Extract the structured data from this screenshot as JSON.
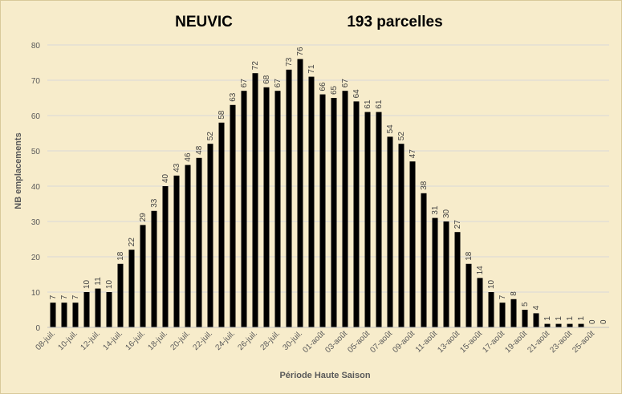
{
  "chart_data": {
    "type": "bar",
    "title": "NEUVIC",
    "subtitle": "193 parcelles",
    "xlabel": "Période Haute Saison",
    "ylabel": "NB emplacements",
    "ylim": [
      0,
      80
    ],
    "yticks": [
      0,
      10,
      20,
      30,
      40,
      50,
      60,
      70,
      80
    ],
    "grid": true,
    "bar_color": "#000000",
    "categories": [
      "08-juil.",
      "09-juil.",
      "10-juil.",
      "11-juil.",
      "12-juil.",
      "13-juil.",
      "14-juil.",
      "15-juil.",
      "16-juil.",
      "17-juil.",
      "18-juil.",
      "19-juil.",
      "20-juil.",
      "21-juil.",
      "22-juil.",
      "23-juil.",
      "24-juil.",
      "25-juil.",
      "26-juil.",
      "27-juil.",
      "28-juil.",
      "29-juil.",
      "30-juil.",
      "31-juil.",
      "01-août",
      "02-août",
      "03-août",
      "04-août",
      "05-août",
      "06-août",
      "07-août",
      "08-août",
      "09-août",
      "10-août",
      "11-août",
      "12-août",
      "13-août",
      "14-août",
      "15-août",
      "16-août",
      "17-août",
      "18-août",
      "19-août",
      "20-août",
      "21-août",
      "22-août",
      "23-août",
      "24-août",
      "25-août",
      "26-août"
    ],
    "tick_labels": [
      "08-juil.",
      "10-juil.",
      "12-juil.",
      "14-juil.",
      "16-juil.",
      "18-juil.",
      "20-juil.",
      "22-juil.",
      "24-juil.",
      "26-juil.",
      "28-juil.",
      "30-juil.",
      "01-août",
      "03-août",
      "05-août",
      "07-août",
      "09-août",
      "11-août",
      "13-août",
      "15-août",
      "17-août",
      "19-août",
      "21-août",
      "23-août",
      "25-août"
    ],
    "values": [
      7,
      7,
      7,
      10,
      11,
      10,
      18,
      22,
      29,
      33,
      40,
      43,
      46,
      48,
      52,
      58,
      63,
      67,
      72,
      68,
      67,
      73,
      76,
      71,
      66,
      65,
      67,
      64,
      61,
      61,
      54,
      52,
      47,
      38,
      31,
      30,
      27,
      18,
      14,
      10,
      7,
      8,
      5,
      4,
      1,
      1,
      1,
      1,
      0,
      0
    ]
  }
}
